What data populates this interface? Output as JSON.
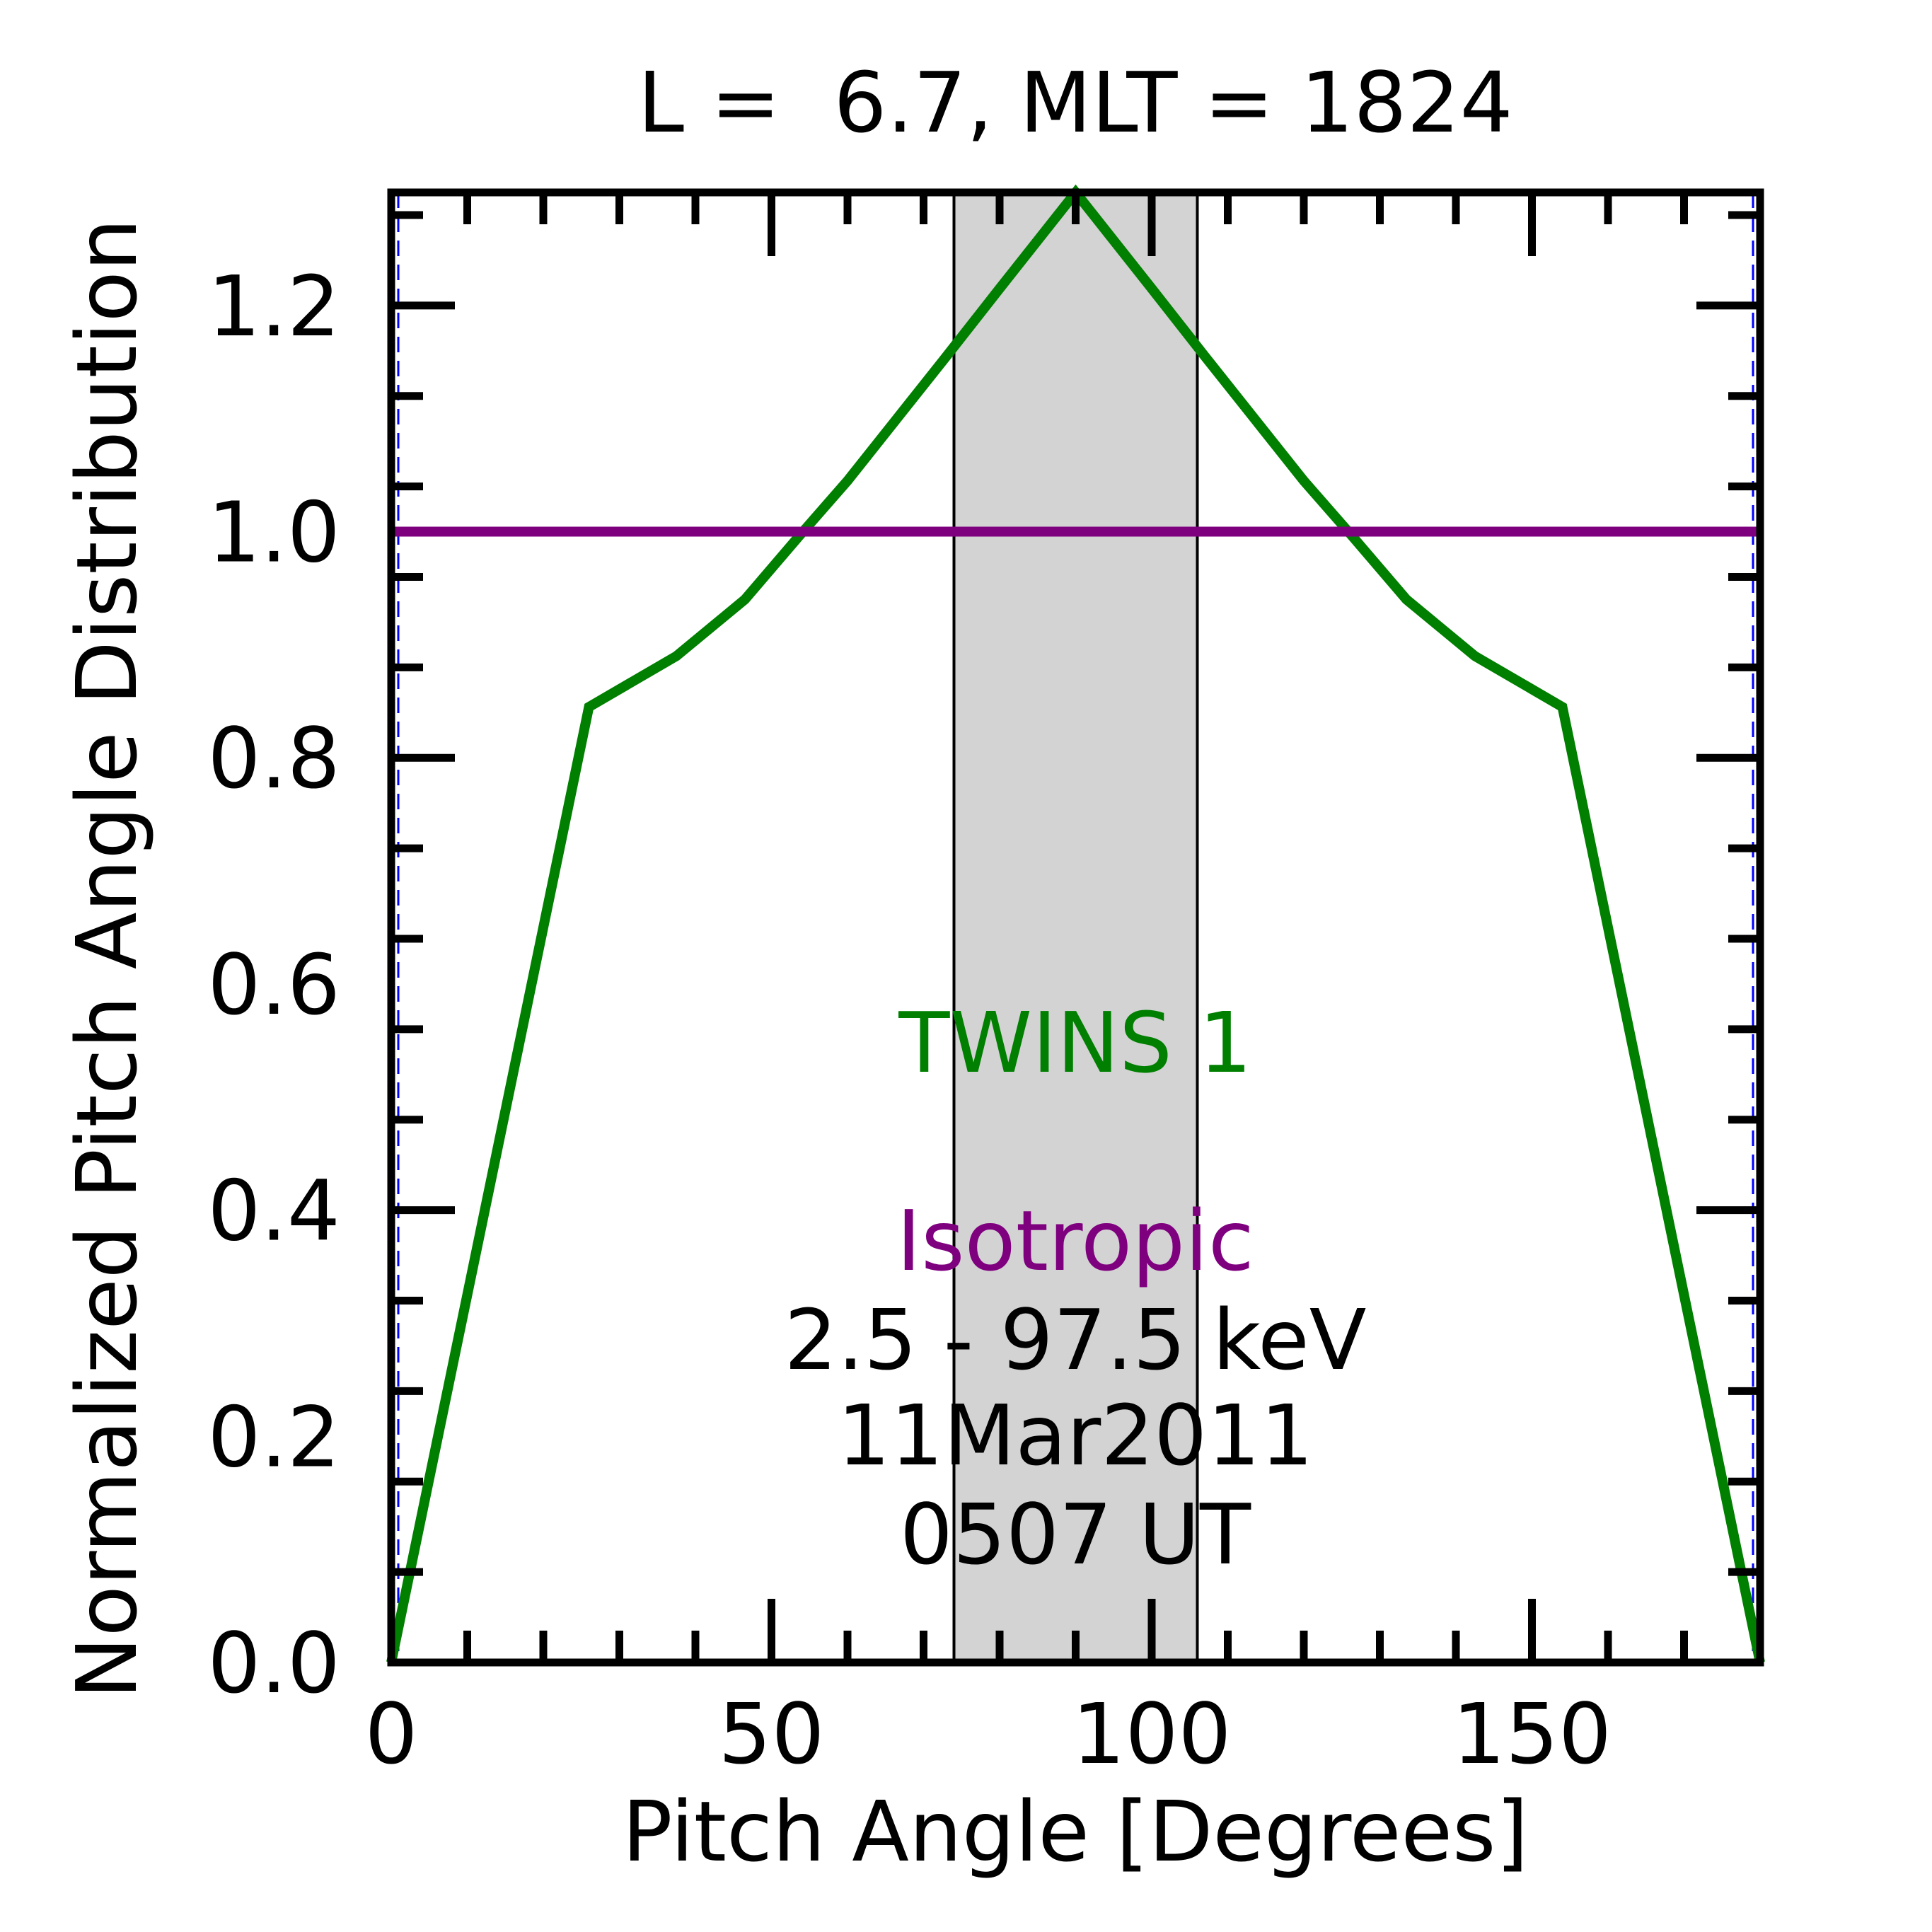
{
  "chart_data": {
    "type": "line",
    "title": "L =  6.7, MLT = 1824",
    "xlabel": "Pitch Angle [Degrees]",
    "ylabel": "Normalized Pitch Angle Distribution",
    "xlim": [
      0,
      180
    ],
    "ylim": [
      0,
      1.3
    ],
    "xticks": [
      0,
      50,
      100,
      150
    ],
    "xtick_labels": [
      "0",
      "50",
      "100",
      "150"
    ],
    "yticks": [
      0.0,
      0.2,
      0.4,
      0.6,
      0.8,
      1.0,
      1.2
    ],
    "ytick_labels": [
      "0.0",
      "0.2",
      "0.4",
      "0.6",
      "0.8",
      "1.0",
      "1.2"
    ],
    "grid": false,
    "shaded_band": {
      "x_start": 74,
      "x_end": 106,
      "color": "#d3d3d3"
    },
    "series": [
      {
        "name": "TWINS 1",
        "color": "#007f00",
        "x": [
          0,
          26,
          37.5,
          46.5,
          53.5,
          60,
          66.5,
          73,
          80,
          90,
          100,
          107,
          113.5,
          120,
          126.5,
          133.5,
          142.5,
          154,
          180
        ],
        "y": [
          0.0,
          0.845,
          0.89,
          0.94,
          0.995,
          1.045,
          1.1,
          1.155,
          1.215,
          1.3,
          1.215,
          1.155,
          1.1,
          1.045,
          0.995,
          0.94,
          0.89,
          0.845,
          0.0
        ]
      },
      {
        "name": "Isotropic",
        "color": "#7f007f",
        "x": [
          0,
          180
        ],
        "y": [
          1.0,
          1.0
        ]
      }
    ],
    "annotations": {
      "series1_label": "TWINS 1",
      "series2_label": "Isotropic",
      "energy": "2.5 - 97.5 keV",
      "date": "11Mar2011",
      "time": "0507 UT"
    }
  }
}
